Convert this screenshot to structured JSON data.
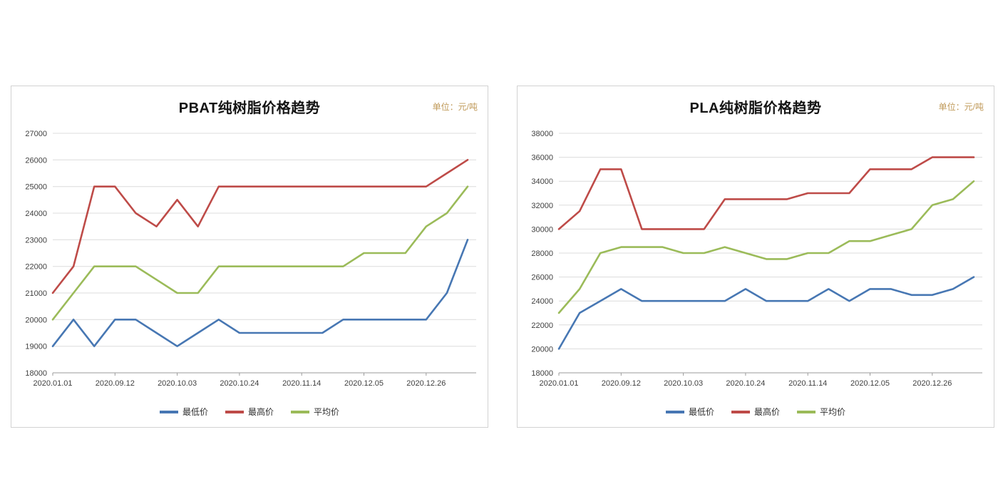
{
  "chart_data": [
    {
      "type": "line",
      "title": "PBAT纯树脂价格趋势",
      "unit_label": "单位：元/吨",
      "xlabel": "",
      "ylabel": "",
      "ylim": [
        18000,
        27000
      ],
      "ytick_step": 1000,
      "grid": true,
      "legend_position": "bottom",
      "x_tick_labels": [
        "2020.01.01",
        "2020.09.12",
        "2020.10.03",
        "2020.10.24",
        "2020.11.14",
        "2020.12.05",
        "2020.12.26"
      ],
      "label_every": 3,
      "series": [
        {
          "name": "最低价",
          "color": "#4777B3",
          "values": [
            19000,
            20000,
            19000,
            20000,
            20000,
            19500,
            19000,
            19500,
            20000,
            19500,
            19500,
            19500,
            19500,
            19500,
            20000,
            20000,
            20000,
            20000,
            20000,
            21000,
            23000
          ]
        },
        {
          "name": "最高价",
          "color": "#BE4B48",
          "values": [
            21000,
            22000,
            25000,
            25000,
            24000,
            23500,
            24500,
            23500,
            25000,
            25000,
            25000,
            25000,
            25000,
            25000,
            25000,
            25000,
            25000,
            25000,
            25000,
            25500,
            26000
          ]
        },
        {
          "name": "平均价",
          "color": "#9BBB59",
          "values": [
            20000,
            21000,
            22000,
            22000,
            22000,
            21500,
            21000,
            21000,
            22000,
            22000,
            22000,
            22000,
            22000,
            22000,
            22000,
            22500,
            22500,
            22500,
            23500,
            24000,
            25000
          ]
        }
      ]
    },
    {
      "type": "line",
      "title": "PLA纯树脂价格趋势",
      "unit_label": "单位：元/吨",
      "xlabel": "",
      "ylabel": "",
      "ylim": [
        18000,
        38000
      ],
      "ytick_step": 2000,
      "grid": true,
      "legend_position": "bottom",
      "x_tick_labels": [
        "2020.01.01",
        "2020.09.12",
        "2020.10.03",
        "2020.10.24",
        "2020.11.14",
        "2020.12.05",
        "2020.12.26"
      ],
      "label_every": 3,
      "series": [
        {
          "name": "最低价",
          "color": "#4777B3",
          "values": [
            20000,
            23000,
            24000,
            25000,
            24000,
            24000,
            24000,
            24000,
            24000,
            25000,
            24000,
            24000,
            24000,
            25000,
            24000,
            25000,
            25000,
            24500,
            24500,
            25000,
            26000
          ]
        },
        {
          "name": "最高价",
          "color": "#BE4B48",
          "values": [
            30000,
            31500,
            35000,
            35000,
            30000,
            30000,
            30000,
            30000,
            32500,
            32500,
            32500,
            32500,
            33000,
            33000,
            33000,
            35000,
            35000,
            35000,
            36000,
            36000,
            36000
          ]
        },
        {
          "name": "平均价",
          "color": "#9BBB59",
          "values": [
            23000,
            25000,
            28000,
            28500,
            28500,
            28500,
            28000,
            28000,
            28500,
            28000,
            27500,
            27500,
            28000,
            28000,
            29000,
            29000,
            29500,
            30000,
            32000,
            32500,
            34000
          ]
        }
      ]
    }
  ]
}
